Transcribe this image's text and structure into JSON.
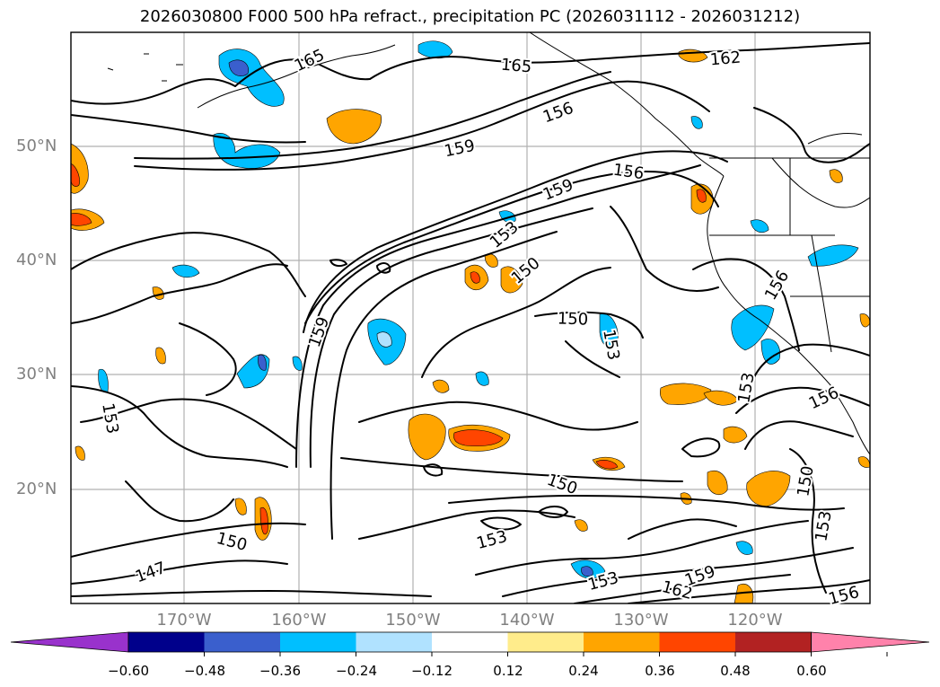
{
  "title": "2026030800 F000 500 hPa refract., precipitation PC (2026031112 - 2026031212)",
  "lat_labels": [
    "50°N",
    "40°N",
    "30°N",
    "20°N"
  ],
  "lon_labels": [
    "170°W",
    "160°W",
    "150°W",
    "140°W",
    "130°W",
    "120°W"
  ],
  "contour_labels": [
    "165",
    "165",
    "162",
    "156",
    "159",
    "156",
    "159",
    "153",
    "150",
    "150",
    "153",
    "159",
    "153",
    "153",
    "156",
    "156",
    "150",
    "153",
    "153",
    "150",
    "153",
    "147",
    "150",
    "162",
    "159",
    "156"
  ],
  "colorbar": {
    "ticks": [
      "−0.60",
      "−0.48",
      "−0.36",
      "−0.24",
      "−0.12",
      "0.12",
      "0.24",
      "0.36",
      "0.48",
      "0.60"
    ],
    "colors": [
      "#9932cc",
      "#00008b",
      "#3a5fcd",
      "#00bfff",
      "#b0e2ff",
      "#ffffff",
      "#ffec8b",
      "#ffa500",
      "#ff4500",
      "#b22222",
      "#ff82ab"
    ]
  },
  "colors": {
    "gridline": "#b0b0b0",
    "label_gray": "#808080",
    "contour": "#000000"
  }
}
